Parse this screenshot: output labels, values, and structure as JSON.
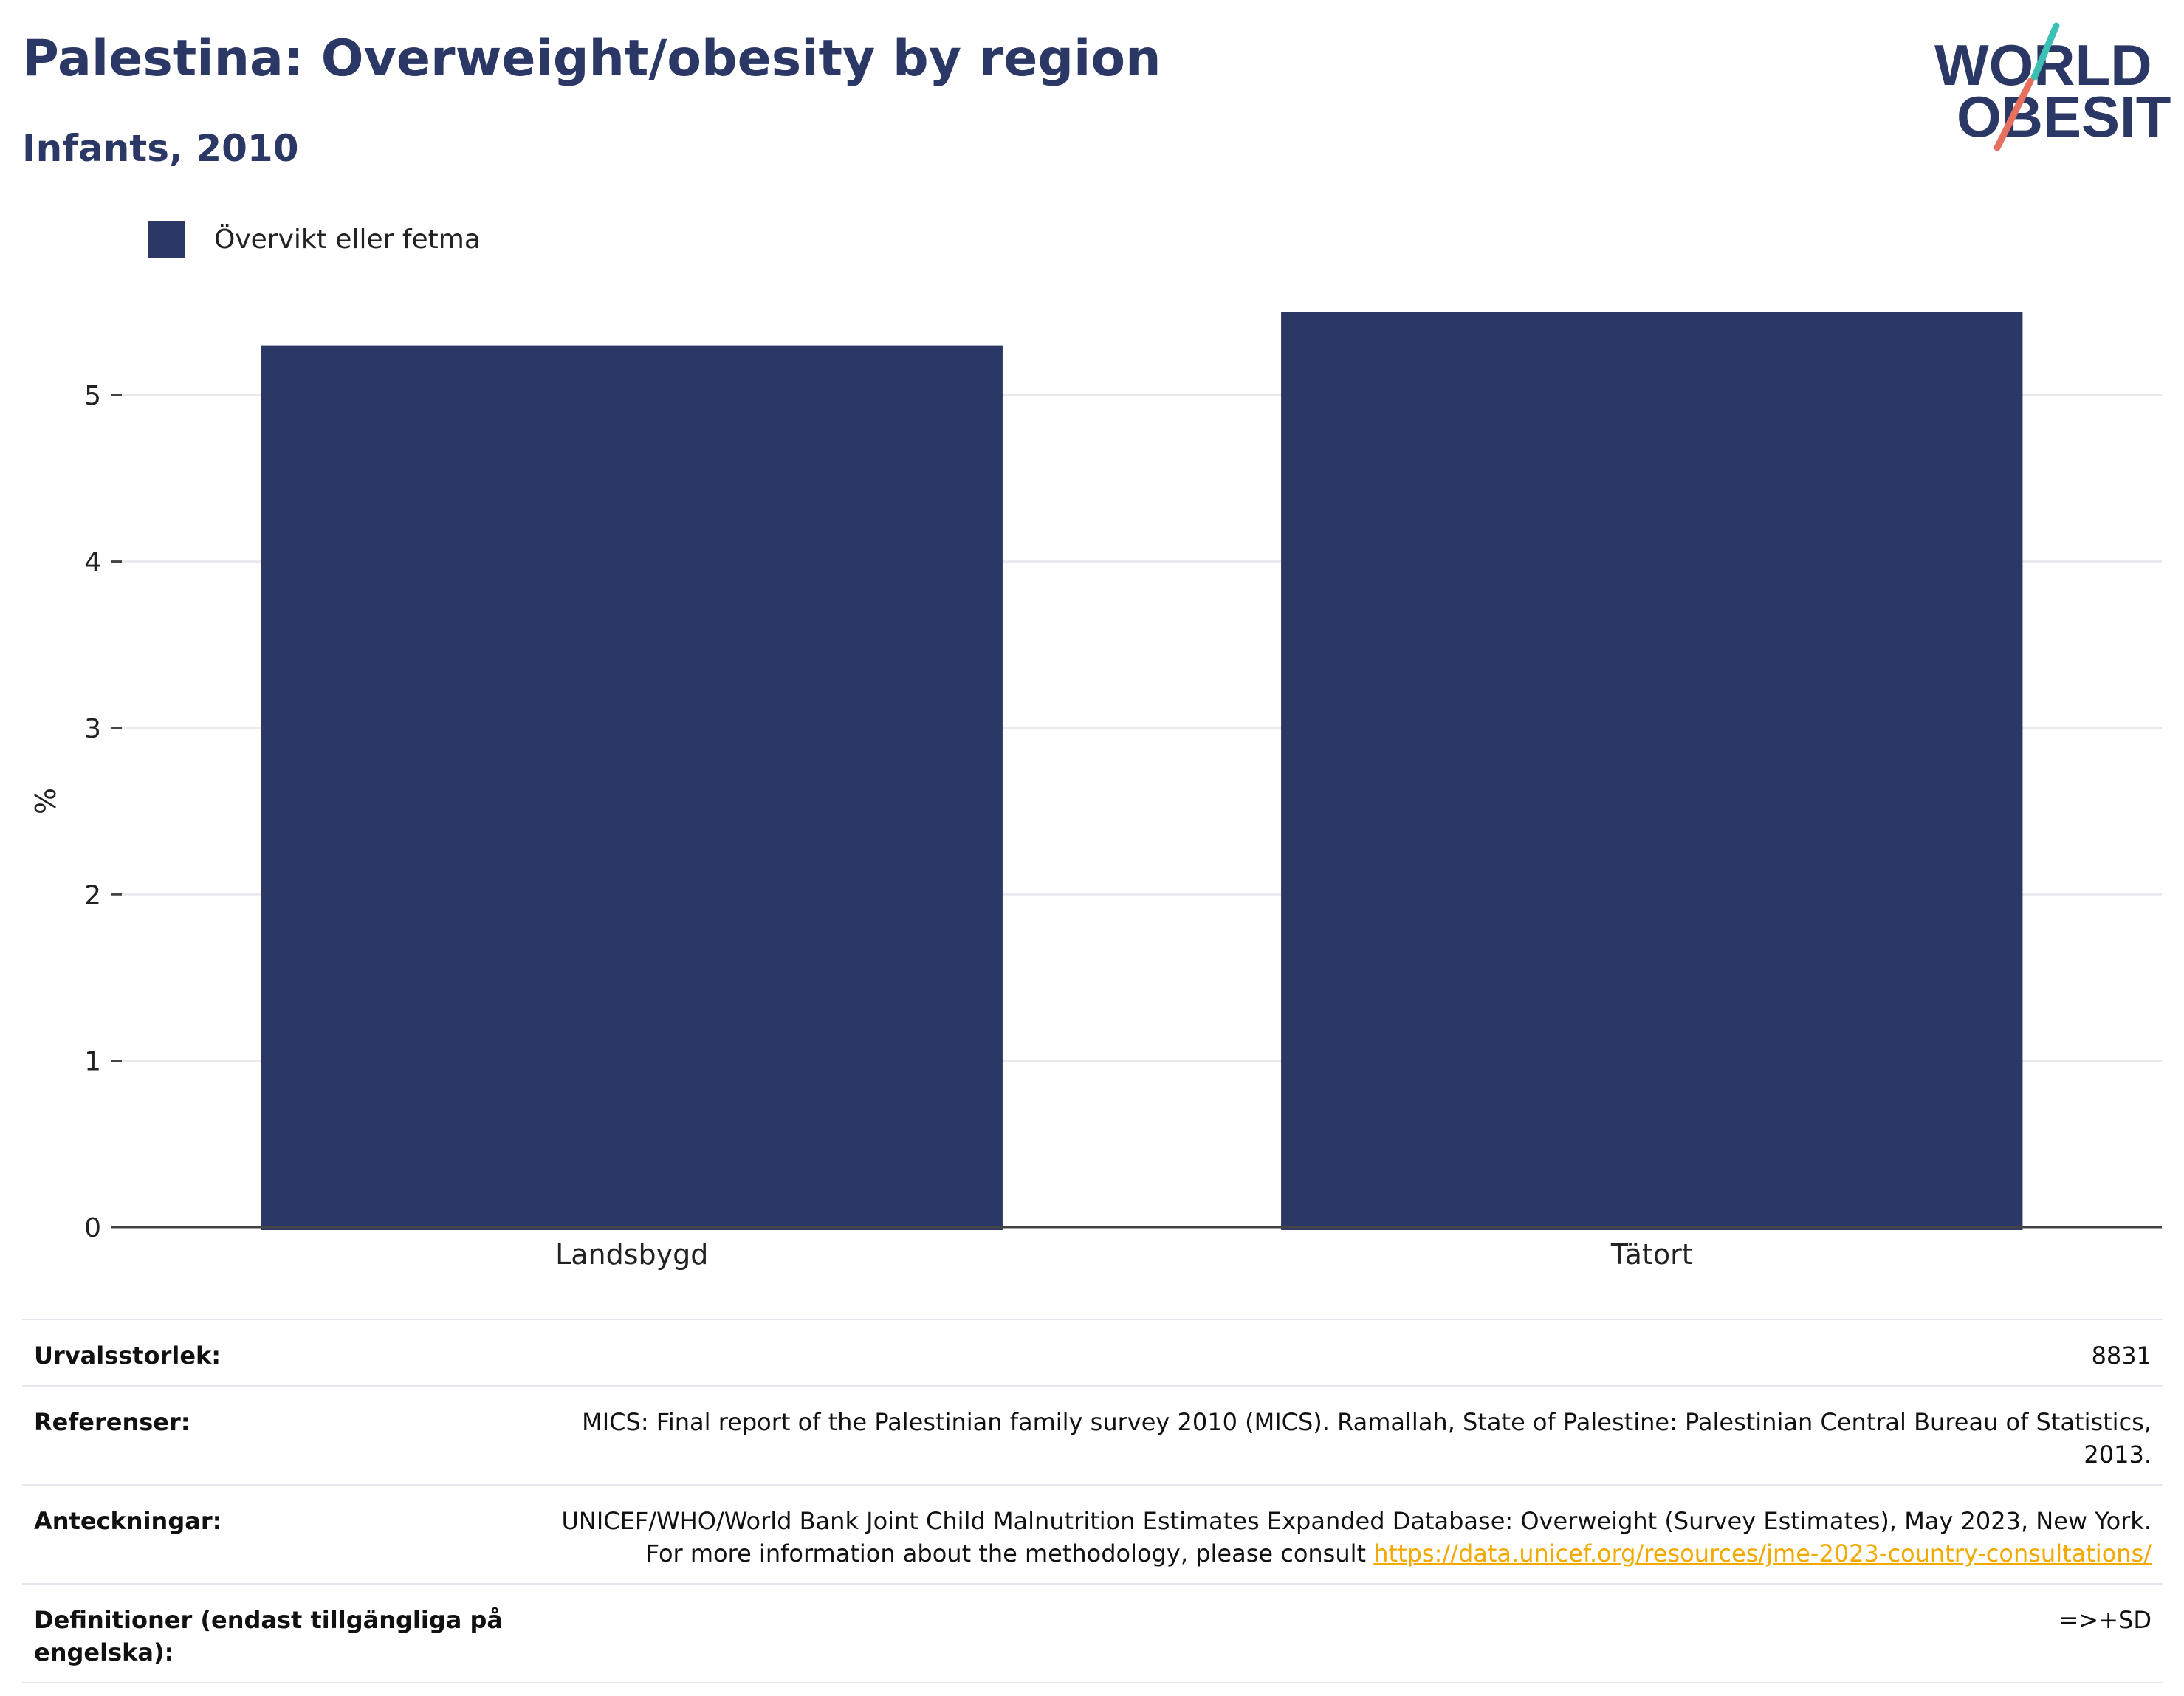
{
  "header": {
    "title": "Palestina: Overweight/obesity by region",
    "subtitle": "Infants, 2010"
  },
  "logo": {
    "line1": "WORLD",
    "line2": "OBESITY",
    "colors": {
      "text": "#2b3865",
      "accent_teal": "#3cbfb4",
      "accent_coral": "#e8705f"
    }
  },
  "chart_data": {
    "type": "bar",
    "categories": [
      "Landsbygd",
      "Tätort"
    ],
    "series": [
      {
        "name": "Övervikt eller fetma",
        "values": [
          5.3,
          5.5
        ],
        "color": "#2b3865"
      }
    ],
    "title": "",
    "xlabel": "",
    "ylabel": "%",
    "ylim": [
      0,
      5.6
    ],
    "yticks": [
      0,
      1,
      2,
      3,
      4,
      5
    ],
    "grid": true,
    "legend_position": "top-left"
  },
  "info": {
    "rows": [
      {
        "label": "Urvalsstorlek:",
        "value": "8831"
      },
      {
        "label": "Referenser:",
        "value": "MICS: Final report of the Palestinian family survey 2010 (MICS). Ramallah, State of Palestine: Palestinian Central Bureau of Statistics, 2013."
      },
      {
        "label": "Anteckningar:",
        "value": "UNICEF/WHO/World Bank Joint Child Malnutrition Estimates Expanded Database: Overweight (Survey Estimates), May 2023, New York. For more information about the methodology, please consult ",
        "link": "https://data.unicef.org/resources/jme-2023-country-consultations/"
      },
      {
        "label": "Definitioner (endast tillgängliga på engelska):",
        "value": "=>+SD"
      }
    ]
  }
}
